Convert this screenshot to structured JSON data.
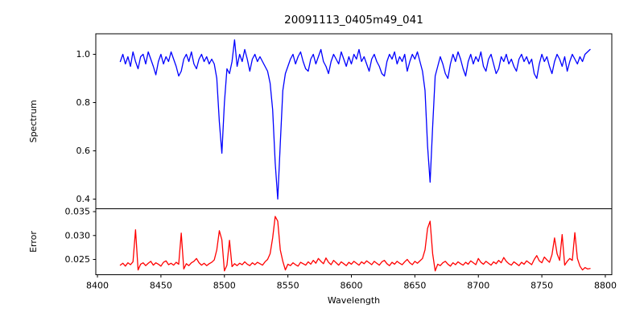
{
  "title": "20091113_0405m49_041",
  "chart_data": {
    "type": "line",
    "title": "20091113_0405m49_041",
    "xlabel": "Wavelength",
    "xlim": [
      8398.7,
      8805.1
    ],
    "x_ticks": [
      8400,
      8450,
      8500,
      8550,
      8600,
      8650,
      8700,
      8750,
      8800
    ],
    "x_tick_labels": [
      "8400",
      "8450",
      "8500",
      "8550",
      "8600",
      "8650",
      "8700",
      "8750",
      "8800"
    ],
    "grid": false,
    "legend": "none",
    "panels": [
      {
        "name": "spectrum",
        "ylabel": "Spectrum",
        "color": "#0000ff",
        "ylim": [
          0.36,
          1.085
        ],
        "y_ticks": [
          0.4,
          0.6,
          0.8,
          1.0
        ],
        "y_tick_labels": [
          "0.4",
          "0.6",
          "0.8",
          "1.0"
        ],
        "absorption_line_centers": [
          8498,
          8542,
          8662
        ],
        "absorption_line_depths": [
          0.59,
          0.4,
          0.47
        ],
        "x_start": 8418,
        "x_step": 2,
        "y": [
          0.97,
          1.0,
          0.96,
          0.99,
          0.95,
          1.01,
          0.97,
          0.94,
          0.99,
          1.0,
          0.96,
          1.01,
          0.98,
          0.95,
          0.915,
          0.97,
          1.0,
          0.96,
          0.99,
          0.97,
          1.01,
          0.98,
          0.95,
          0.91,
          0.93,
          0.98,
          1.0,
          0.97,
          1.01,
          0.96,
          0.94,
          0.98,
          1.0,
          0.97,
          0.99,
          0.96,
          0.98,
          0.96,
          0.9,
          0.72,
          0.59,
          0.8,
          0.94,
          0.92,
          0.97,
          1.06,
          0.95,
          1.0,
          0.97,
          1.02,
          0.98,
          0.93,
          0.98,
          1.0,
          0.97,
          0.99,
          0.97,
          0.95,
          0.93,
          0.88,
          0.77,
          0.55,
          0.4,
          0.63,
          0.85,
          0.92,
          0.95,
          0.98,
          1.0,
          0.96,
          0.99,
          1.01,
          0.97,
          0.94,
          0.93,
          0.98,
          1.0,
          0.96,
          0.99,
          1.02,
          0.97,
          0.95,
          0.92,
          0.97,
          1.0,
          0.98,
          0.96,
          1.01,
          0.98,
          0.95,
          0.99,
          0.96,
          1.0,
          0.98,
          1.02,
          0.97,
          0.99,
          0.96,
          0.93,
          0.98,
          1.0,
          0.97,
          0.95,
          0.92,
          0.91,
          0.97,
          1.0,
          0.98,
          1.01,
          0.96,
          0.99,
          0.97,
          1.0,
          0.93,
          0.97,
          1.0,
          0.98,
          1.01,
          0.97,
          0.93,
          0.85,
          0.62,
          0.47,
          0.7,
          0.91,
          0.95,
          0.99,
          0.96,
          0.92,
          0.9,
          0.96,
          1.0,
          0.97,
          1.01,
          0.98,
          0.94,
          0.91,
          0.97,
          1.0,
          0.96,
          0.99,
          0.97,
          1.01,
          0.95,
          0.93,
          0.98,
          1.0,
          0.96,
          0.92,
          0.94,
          0.99,
          0.97,
          1.0,
          0.96,
          0.98,
          0.95,
          0.93,
          0.98,
          1.0,
          0.97,
          0.99,
          0.96,
          0.98,
          0.92,
          0.9,
          0.96,
          1.0,
          0.97,
          0.99,
          0.95,
          0.92,
          0.97,
          1.0,
          0.98,
          0.95,
          0.99,
          0.93,
          0.97,
          1.0,
          0.98,
          0.96,
          0.99,
          0.97,
          1.0,
          1.01,
          1.02
        ]
      },
      {
        "name": "error",
        "ylabel": "Error",
        "color": "#ff0000",
        "ylim": [
          0.0218,
          0.0356
        ],
        "y_ticks": [
          0.025,
          0.03,
          0.035
        ],
        "y_tick_labels": [
          "0.025",
          "0.030",
          "0.035"
        ],
        "spike_centers": [
          8430,
          8466,
          8496,
          8504,
          8541,
          8662,
          8760,
          8766,
          8776
        ],
        "x_start": 8418,
        "x_step": 2,
        "y": [
          0.0238,
          0.0242,
          0.0236,
          0.0243,
          0.0239,
          0.0245,
          0.0312,
          0.0228,
          0.024,
          0.0243,
          0.0237,
          0.0242,
          0.0246,
          0.0238,
          0.0243,
          0.024,
          0.0236,
          0.0244,
          0.0247,
          0.0239,
          0.0242,
          0.0238,
          0.0244,
          0.024,
          0.0305,
          0.023,
          0.0241,
          0.0237,
          0.0243,
          0.0246,
          0.0252,
          0.0243,
          0.0238,
          0.0242,
          0.0237,
          0.0241,
          0.0244,
          0.0249,
          0.027,
          0.031,
          0.0291,
          0.0226,
          0.0238,
          0.029,
          0.0235,
          0.0241,
          0.0237,
          0.0242,
          0.0239,
          0.0245,
          0.024,
          0.0237,
          0.0243,
          0.0239,
          0.0244,
          0.0241,
          0.0238,
          0.0245,
          0.025,
          0.0262,
          0.0295,
          0.034,
          0.033,
          0.027,
          0.0246,
          0.0228,
          0.024,
          0.0237,
          0.0243,
          0.0239,
          0.0236,
          0.0244,
          0.0241,
          0.0238,
          0.0245,
          0.024,
          0.0248,
          0.0242,
          0.0252,
          0.0246,
          0.0241,
          0.0253,
          0.0244,
          0.0239,
          0.0248,
          0.0243,
          0.0238,
          0.0245,
          0.0241,
          0.0237,
          0.0244,
          0.024,
          0.0246,
          0.0242,
          0.0238,
          0.0245,
          0.0241,
          0.0247,
          0.0243,
          0.0239,
          0.0246,
          0.0242,
          0.0238,
          0.0245,
          0.0248,
          0.0241,
          0.0237,
          0.0244,
          0.024,
          0.0246,
          0.0242,
          0.0239,
          0.0245,
          0.025,
          0.0243,
          0.0239,
          0.0246,
          0.0242,
          0.0247,
          0.0252,
          0.027,
          0.0315,
          0.033,
          0.0262,
          0.0226,
          0.024,
          0.0237,
          0.0243,
          0.0246,
          0.024,
          0.0236,
          0.0243,
          0.0239,
          0.0245,
          0.0241,
          0.0238,
          0.0244,
          0.024,
          0.0247,
          0.0243,
          0.0239,
          0.0252,
          0.0244,
          0.024,
          0.0246,
          0.0242,
          0.0238,
          0.0245,
          0.0241,
          0.0248,
          0.0243,
          0.0254,
          0.0246,
          0.0241,
          0.0238,
          0.0245,
          0.0241,
          0.0237,
          0.0244,
          0.024,
          0.0247,
          0.0243,
          0.0239,
          0.025,
          0.0258,
          0.0247,
          0.0243,
          0.0255,
          0.0249,
          0.0244,
          0.026,
          0.0295,
          0.0262,
          0.0248,
          0.0302,
          0.0238,
          0.0246,
          0.0252,
          0.0248,
          0.0306,
          0.0252,
          0.0236,
          0.0228,
          0.0233,
          0.023,
          0.0231
        ]
      }
    ]
  }
}
